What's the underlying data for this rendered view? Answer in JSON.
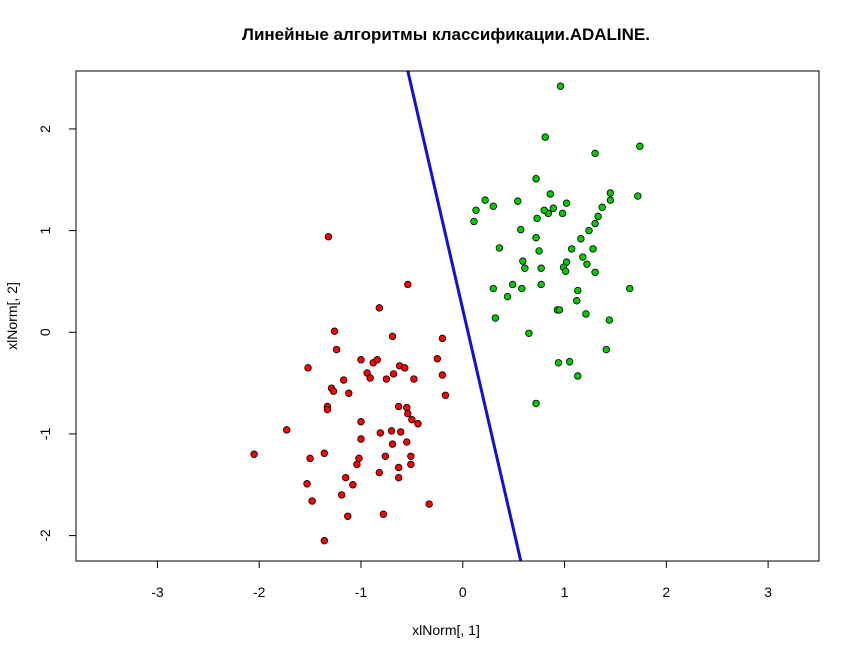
{
  "chart_data": {
    "type": "scatter",
    "title": "Линейные алгоритмы классификации.ADALINE.",
    "xlabel": "xlNorm[, 1]",
    "ylabel": "xlNorm[, 2]",
    "xlim": [
      -3.8,
      3.5
    ],
    "ylim": [
      -2.25,
      2.57
    ],
    "x_ticks": [
      -3,
      -2,
      -1,
      0,
      1,
      2,
      3
    ],
    "y_ticks": [
      -2,
      -1,
      0,
      1,
      2
    ],
    "x_tick_labels": [
      "-3",
      "-2",
      "-1",
      "0",
      "1",
      "2",
      "3"
    ],
    "y_tick_labels": [
      "-2",
      "-1",
      "0",
      "1",
      "2"
    ],
    "grid": false,
    "legend": "none",
    "separator_line": {
      "color": "#1010d8",
      "points": [
        [
          -0.54,
          2.57
        ],
        [
          0.57,
          -2.25
        ]
      ]
    },
    "series": [
      {
        "color": "#ff0000",
        "points": [
          [
            -1.32,
            0.94
          ],
          [
            -0.54,
            0.47
          ],
          [
            -0.82,
            0.24
          ],
          [
            -1.26,
            0.01
          ],
          [
            -0.69,
            -0.04
          ],
          [
            -1.24,
            -0.17
          ],
          [
            -0.2,
            -0.06
          ],
          [
            -0.25,
            -0.26
          ],
          [
            -1.52,
            -0.35
          ],
          [
            -1.0,
            -0.27
          ],
          [
            -0.88,
            -0.3
          ],
          [
            -0.84,
            -0.27
          ],
          [
            -0.62,
            -0.33
          ],
          [
            -0.57,
            -0.35
          ],
          [
            -0.2,
            -0.42
          ],
          [
            -1.29,
            -0.55
          ],
          [
            -1.17,
            -0.47
          ],
          [
            -0.94,
            -0.4
          ],
          [
            -0.91,
            -0.45
          ],
          [
            -0.75,
            -0.46
          ],
          [
            -0.68,
            -0.41
          ],
          [
            -0.48,
            -0.46
          ],
          [
            -1.27,
            -0.58
          ],
          [
            -1.12,
            -0.6
          ],
          [
            -0.17,
            -0.62
          ],
          [
            -1.33,
            -0.73
          ],
          [
            -1.33,
            -0.76
          ],
          [
            -0.63,
            -0.73
          ],
          [
            -0.55,
            -0.74
          ],
          [
            -0.54,
            -0.8
          ],
          [
            -0.5,
            -0.86
          ],
          [
            -0.44,
            -0.9
          ],
          [
            -1.73,
            -0.96
          ],
          [
            -1.0,
            -0.88
          ],
          [
            -0.81,
            -0.99
          ],
          [
            -0.7,
            -0.97
          ],
          [
            -0.61,
            -0.98
          ],
          [
            -1.0,
            -1.05
          ],
          [
            -0.69,
            -1.1
          ],
          [
            -0.55,
            -1.08
          ],
          [
            -2.05,
            -1.2
          ],
          [
            -1.5,
            -1.24
          ],
          [
            -1.36,
            -1.19
          ],
          [
            -1.02,
            -1.24
          ],
          [
            -0.76,
            -1.22
          ],
          [
            -0.51,
            -1.22
          ],
          [
            -1.04,
            -1.3
          ],
          [
            -0.63,
            -1.33
          ],
          [
            -0.51,
            -1.3
          ],
          [
            -0.82,
            -1.38
          ],
          [
            -1.15,
            -1.43
          ],
          [
            -0.63,
            -1.43
          ],
          [
            -1.53,
            -1.49
          ],
          [
            -1.08,
            -1.5
          ],
          [
            -1.19,
            -1.6
          ],
          [
            -1.48,
            -1.66
          ],
          [
            -0.33,
            -1.69
          ],
          [
            -1.13,
            -1.81
          ],
          [
            -0.78,
            -1.79
          ],
          [
            -1.36,
            -2.05
          ]
        ]
      },
      {
        "color": "#00cc00",
        "points": [
          [
            0.96,
            2.42
          ],
          [
            0.81,
            1.92
          ],
          [
            1.74,
            1.83
          ],
          [
            1.3,
            1.76
          ],
          [
            0.72,
            1.51
          ],
          [
            0.86,
            1.36
          ],
          [
            1.45,
            1.37
          ],
          [
            1.72,
            1.34
          ],
          [
            0.22,
            1.3
          ],
          [
            0.54,
            1.29
          ],
          [
            1.02,
            1.27
          ],
          [
            1.45,
            1.3
          ],
          [
            0.13,
            1.2
          ],
          [
            0.3,
            1.24
          ],
          [
            0.89,
            1.22
          ],
          [
            0.84,
            1.17
          ],
          [
            0.8,
            1.2
          ],
          [
            0.98,
            1.17
          ],
          [
            1.37,
            1.23
          ],
          [
            0.73,
            1.12
          ],
          [
            1.33,
            1.14
          ],
          [
            0.11,
            1.09
          ],
          [
            1.3,
            1.07
          ],
          [
            0.57,
            1.01
          ],
          [
            1.24,
            1.0
          ],
          [
            0.72,
            0.93
          ],
          [
            1.16,
            0.92
          ],
          [
            0.36,
            0.83
          ],
          [
            1.07,
            0.82
          ],
          [
            1.28,
            0.82
          ],
          [
            0.75,
            0.8
          ],
          [
            1.18,
            0.74
          ],
          [
            0.59,
            0.7
          ],
          [
            1.02,
            0.69
          ],
          [
            0.99,
            0.64
          ],
          [
            0.61,
            0.63
          ],
          [
            0.77,
            0.63
          ],
          [
            1.01,
            0.6
          ],
          [
            1.22,
            0.67
          ],
          [
            1.3,
            0.59
          ],
          [
            0.49,
            0.47
          ],
          [
            0.77,
            0.47
          ],
          [
            0.3,
            0.43
          ],
          [
            0.58,
            0.43
          ],
          [
            1.64,
            0.43
          ],
          [
            0.44,
            0.35
          ],
          [
            1.13,
            0.41
          ],
          [
            1.12,
            0.31
          ],
          [
            0.93,
            0.22
          ],
          [
            0.95,
            0.22
          ],
          [
            1.21,
            0.18
          ],
          [
            0.32,
            0.14
          ],
          [
            1.44,
            0.12
          ],
          [
            0.65,
            -0.01
          ],
          [
            1.41,
            -0.17
          ],
          [
            0.94,
            -0.3
          ],
          [
            1.05,
            -0.29
          ],
          [
            1.13,
            -0.43
          ],
          [
            0.72,
            -0.7
          ]
        ]
      }
    ]
  }
}
